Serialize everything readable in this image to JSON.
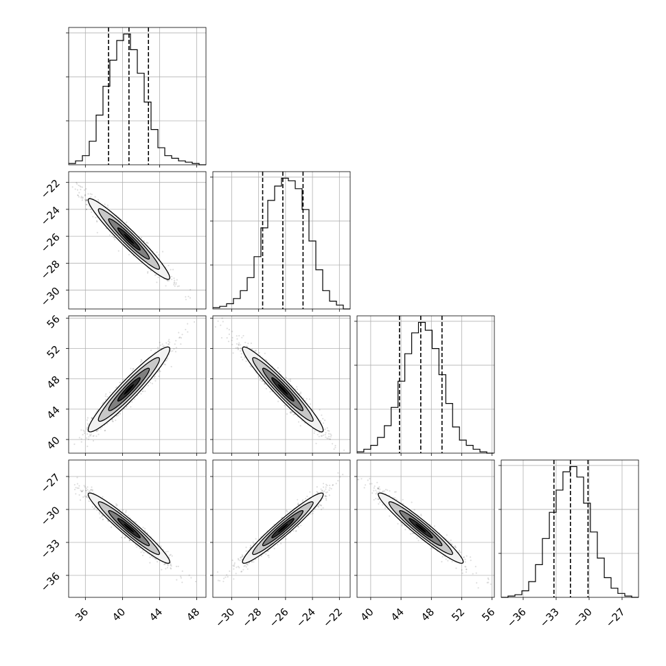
{
  "chart_data": {
    "type": "corner",
    "grid": true,
    "quantile_lines": [
      0.16,
      0.5,
      0.84
    ],
    "params": [
      {
        "lim": [
          34.2,
          49.0
        ],
        "ticks": [
          36,
          40,
          44,
          48
        ],
        "tick_labels": [
          "36",
          "40",
          "44",
          "48"
        ]
      },
      {
        "lim": [
          -31.4,
          -21.2
        ],
        "ticks": [
          -30,
          -28,
          -26,
          -24,
          -22
        ],
        "tick_labels": [
          "−30",
          "−28",
          "−26",
          "−24",
          "−22"
        ]
      },
      {
        "lim": [
          38.2,
          56.3
        ],
        "ticks": [
          40,
          44,
          48,
          52,
          56
        ],
        "tick_labels": [
          "40",
          "44",
          "48",
          "52",
          "56"
        ]
      },
      {
        "lim": [
          -38.0,
          -25.5
        ],
        "ticks": [
          -36,
          -33,
          -30,
          -27
        ],
        "tick_labels": [
          "−36",
          "−33",
          "−30",
          "−27"
        ]
      }
    ],
    "histograms": [
      {
        "param": 0,
        "edges": [
          34.2,
          34.94,
          35.68,
          36.42,
          37.16,
          37.9,
          38.64,
          39.38,
          40.12,
          40.86,
          41.6,
          42.34,
          43.08,
          43.82,
          44.56,
          45.3,
          46.04,
          46.78,
          47.52,
          48.26,
          49.0
        ],
        "counts": [
          0.01,
          0.03,
          0.07,
          0.18,
          0.38,
          0.6,
          0.8,
          0.95,
          1.0,
          0.88,
          0.7,
          0.48,
          0.27,
          0.13,
          0.07,
          0.05,
          0.03,
          0.02,
          0.01,
          0.0
        ],
        "quantiles": [
          38.5,
          40.7,
          42.8
        ]
      },
      {
        "param": 1,
        "edges": [
          -31.4,
          -30.89,
          -30.38,
          -29.87,
          -29.36,
          -28.85,
          -28.34,
          -27.83,
          -27.32,
          -26.81,
          -26.3,
          -25.79,
          -25.28,
          -24.77,
          -24.26,
          -23.75,
          -23.24,
          -22.73,
          -22.22,
          -21.71,
          -21.2
        ],
        "counts": [
          0.01,
          0.02,
          0.04,
          0.08,
          0.14,
          0.24,
          0.4,
          0.62,
          0.83,
          0.94,
          1.0,
          0.98,
          0.92,
          0.76,
          0.52,
          0.3,
          0.14,
          0.06,
          0.03,
          0.0
        ],
        "quantiles": [
          -27.7,
          -26.2,
          -24.7
        ]
      },
      {
        "param": 2,
        "edges": [
          38.2,
          39.1,
          40.0,
          40.9,
          41.8,
          42.7,
          43.6,
          44.5,
          45.4,
          46.3,
          47.2,
          48.1,
          49.0,
          49.9,
          50.8,
          51.7,
          52.6,
          53.5,
          54.4,
          55.3,
          56.2
        ],
        "counts": [
          0.01,
          0.03,
          0.06,
          0.12,
          0.21,
          0.35,
          0.55,
          0.76,
          0.92,
          1.0,
          0.94,
          0.8,
          0.6,
          0.38,
          0.2,
          0.1,
          0.06,
          0.03,
          0.01,
          0.0
        ],
        "quantiles": [
          43.8,
          46.6,
          49.4
        ]
      },
      {
        "param": 3,
        "edges": [
          -38.0,
          -37.38,
          -36.75,
          -36.12,
          -35.5,
          -34.88,
          -34.25,
          -33.62,
          -33.0,
          -32.38,
          -31.75,
          -31.12,
          -30.5,
          -29.88,
          -29.25,
          -28.62,
          -28.0,
          -27.38,
          -26.75,
          -26.12,
          -25.5
        ],
        "counts": [
          0.0,
          0.01,
          0.02,
          0.05,
          0.12,
          0.25,
          0.45,
          0.65,
          0.82,
          0.96,
          1.0,
          0.92,
          0.72,
          0.5,
          0.3,
          0.15,
          0.07,
          0.03,
          0.01,
          0.0
        ],
        "quantiles": [
          -33.2,
          -31.7,
          -30.1
        ]
      }
    ],
    "pairs": [
      {
        "x": 0,
        "y": 1,
        "mean": [
          40.7,
          -26.2
        ],
        "sd": [
          2.2,
          1.5
        ],
        "rho": -0.96
      },
      {
        "x": 0,
        "y": 2,
        "mean": [
          40.7,
          46.6
        ],
        "sd": [
          2.2,
          2.8
        ],
        "rho": 0.95
      },
      {
        "x": 1,
        "y": 2,
        "mean": [
          -26.2,
          46.6
        ],
        "sd": [
          1.5,
          2.8
        ],
        "rho": -0.96
      },
      {
        "x": 0,
        "y": 3,
        "mean": [
          40.7,
          -31.7
        ],
        "sd": [
          2.2,
          1.6
        ],
        "rho": -0.96
      },
      {
        "x": 1,
        "y": 3,
        "mean": [
          -26.2,
          -31.7
        ],
        "sd": [
          1.5,
          1.6
        ],
        "rho": 0.96
      },
      {
        "x": 2,
        "y": 3,
        "mean": [
          46.6,
          -31.7
        ],
        "sd": [
          2.8,
          1.6
        ],
        "rho": -0.96
      }
    ]
  }
}
